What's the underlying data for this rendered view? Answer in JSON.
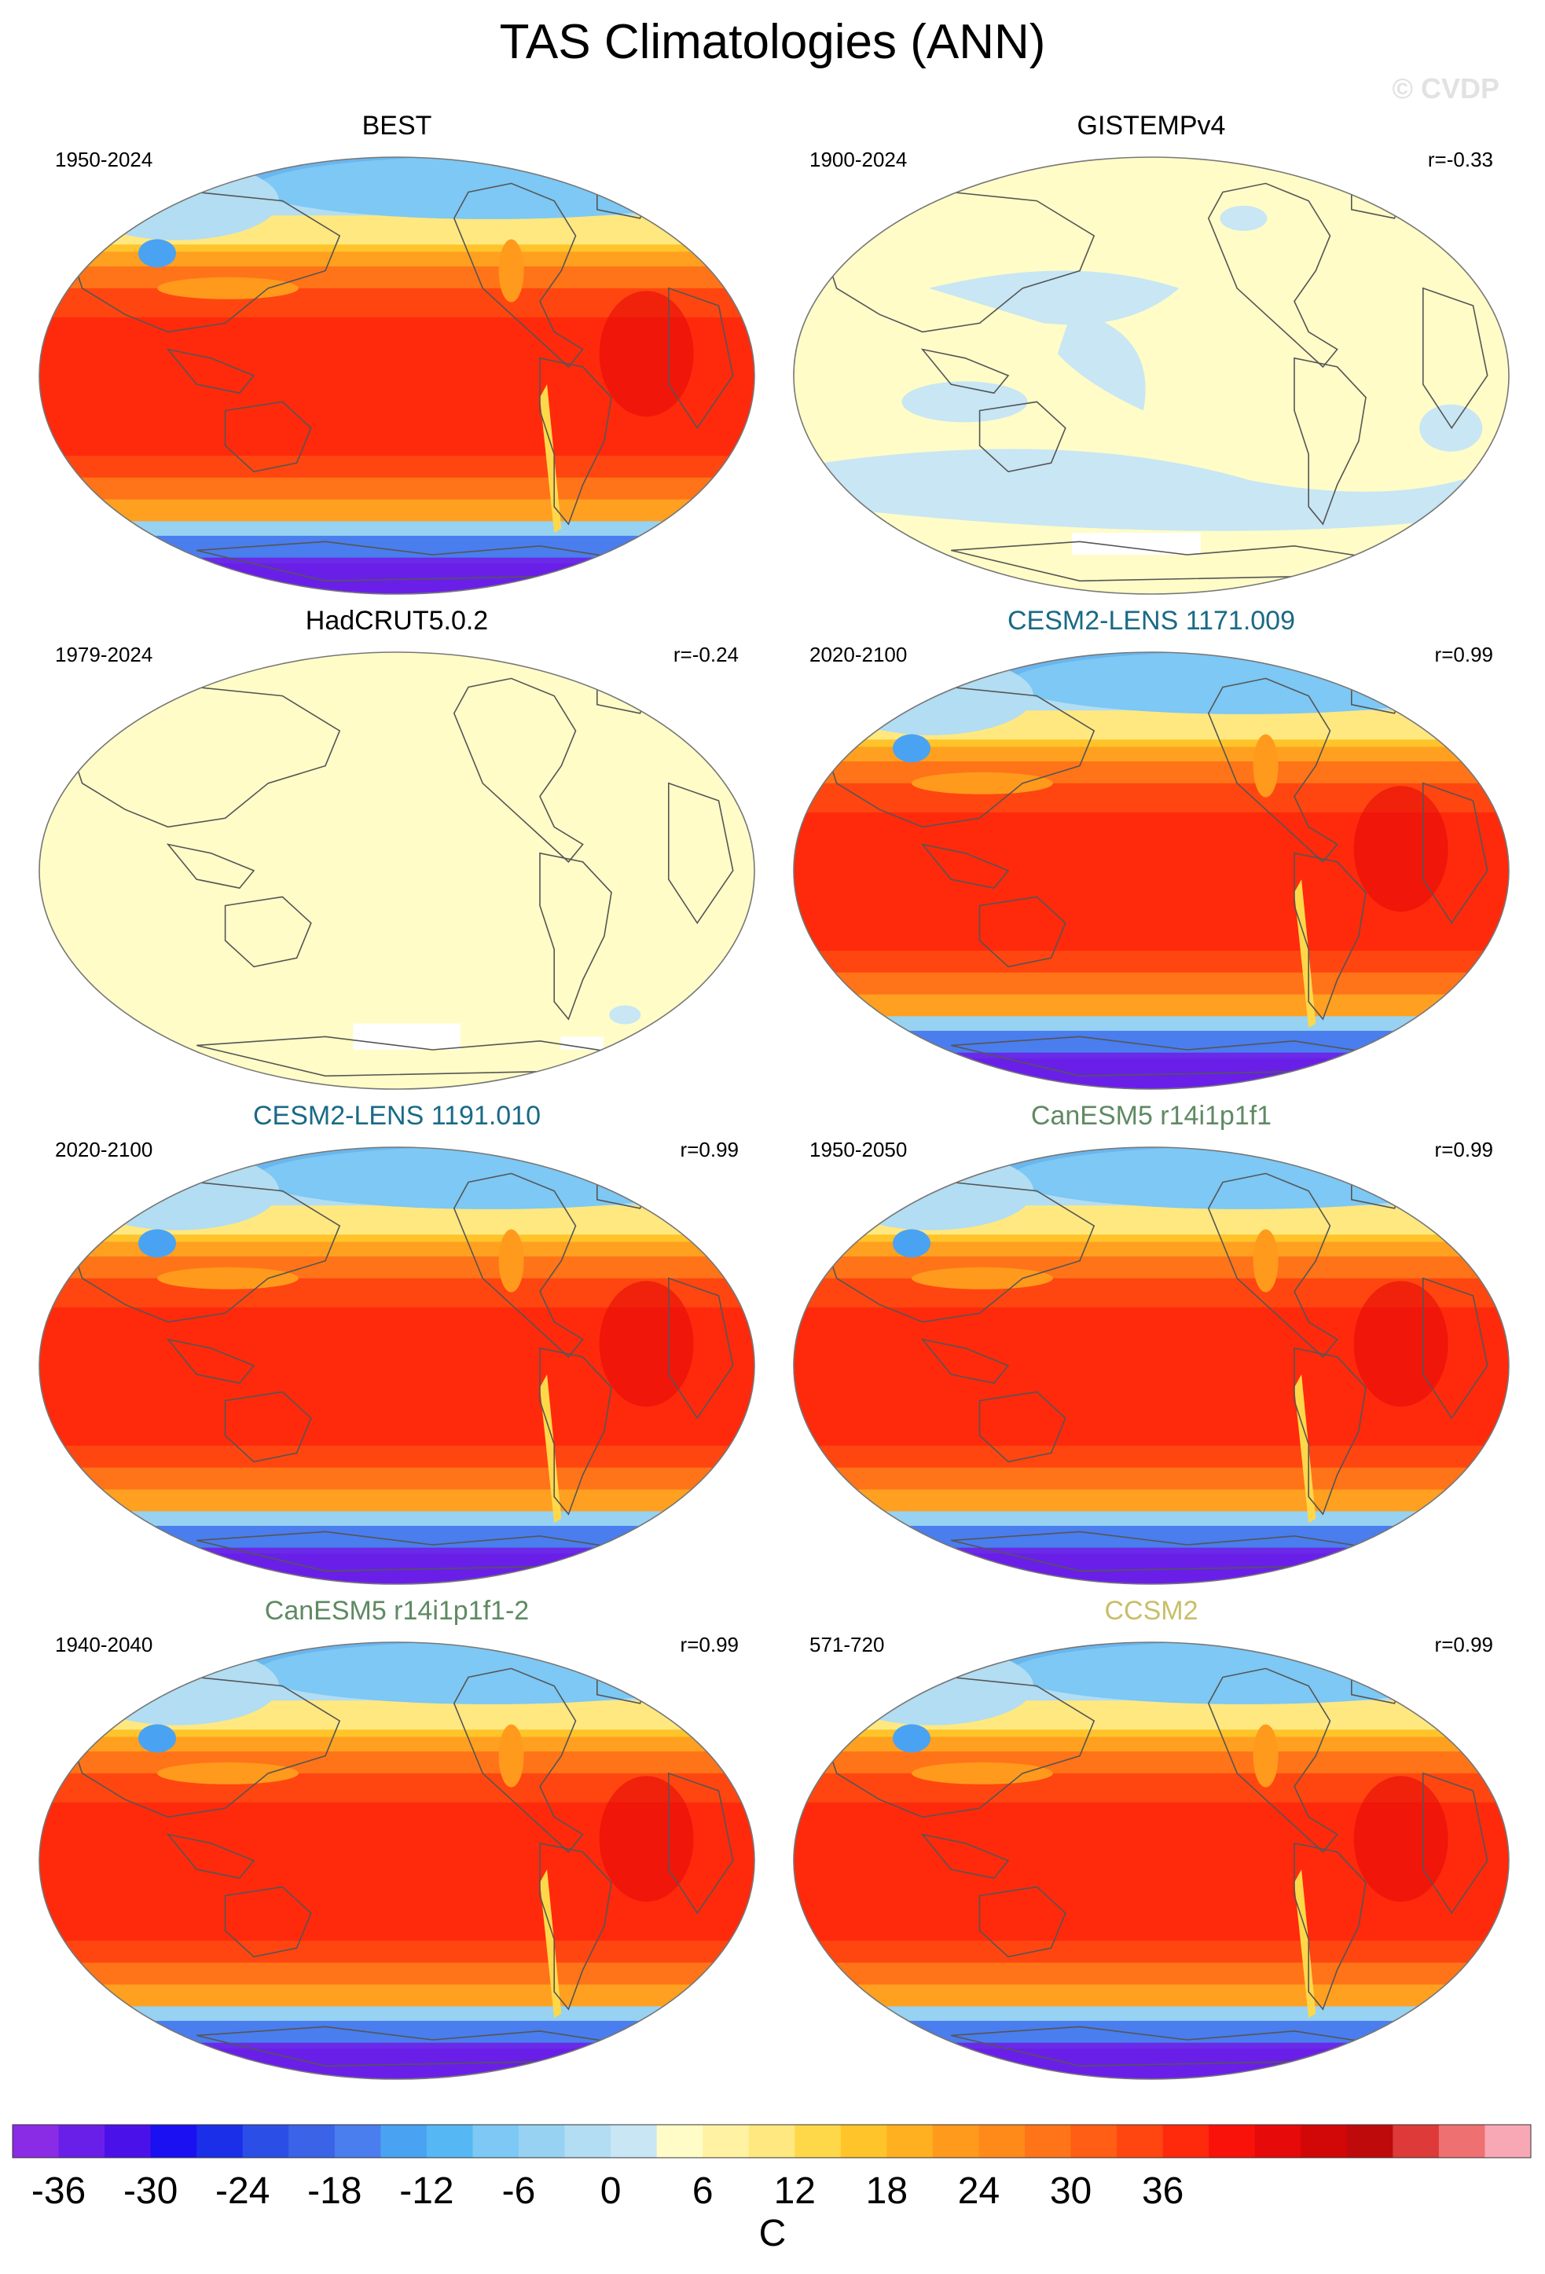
{
  "title": "TAS Climatologies (ANN)",
  "watermark": "© CVDP",
  "panels": [
    {
      "name": "BEST",
      "period": "1950-2024",
      "r": "",
      "title_color": "#000000",
      "style": "full",
      "seed": 1
    },
    {
      "name": "GISTEMPv4",
      "period": "1900-2024",
      "r": "r=-0.33",
      "title_color": "#000000",
      "style": "flat-blue",
      "seed": 2
    },
    {
      "name": "HadCRUT5.0.2",
      "period": "1979-2024",
      "r": "r=-0.24",
      "title_color": "#000000",
      "style": "flat",
      "seed": 3
    },
    {
      "name": "CESM2-LENS 1171.009",
      "period": "2020-2100",
      "r": "r=0.99",
      "title_color": "#1a6a86",
      "style": "full",
      "seed": 4
    },
    {
      "name": "CESM2-LENS 1191.010",
      "period": "2020-2100",
      "r": "r=0.99",
      "title_color": "#1a6a86",
      "style": "full",
      "seed": 5
    },
    {
      "name": "CanESM5 r14i1p1f1",
      "period": "1950-2050",
      "r": "r=0.99",
      "title_color": "#5f8a63",
      "style": "full",
      "seed": 6
    },
    {
      "name": "CanESM5 r14i1p1f1-2",
      "period": "1940-2040",
      "r": "r=0.99",
      "title_color": "#5f8a63",
      "style": "full",
      "seed": 7
    },
    {
      "name": "CCSM2",
      "period": "571-720",
      "r": "r=0.99",
      "title_color": "#c9be6a",
      "style": "full",
      "seed": 8
    }
  ],
  "colorbar": {
    "unit": "C",
    "tick_labels": [
      "-36",
      "-30",
      "-24",
      "-18",
      "-12",
      "-6",
      "0",
      "6",
      "12",
      "18",
      "24",
      "30",
      "36"
    ],
    "colors": [
      "#8a2be6",
      "#6a1fe8",
      "#4a12e8",
      "#1a10f2",
      "#1b2ee8",
      "#2b4fe6",
      "#3a63e8",
      "#4a7ded",
      "#4aa2f2",
      "#55b8f4",
      "#7dc8f4",
      "#97d2f2",
      "#b2ddf2",
      "#c8e6f4",
      "#fffcc8",
      "#fff2a2",
      "#ffe880",
      "#ffd84a",
      "#ffc42a",
      "#ffb020",
      "#ff9a1c",
      "#ff8a1a",
      "#ff7418",
      "#ff5e14",
      "#ff4610",
      "#ff2a0c",
      "#f8120a",
      "#e60a0a",
      "#d20808",
      "#be0a0a",
      "#de3a3a",
      "#ee7070",
      "#f8a8b4"
    ]
  }
}
